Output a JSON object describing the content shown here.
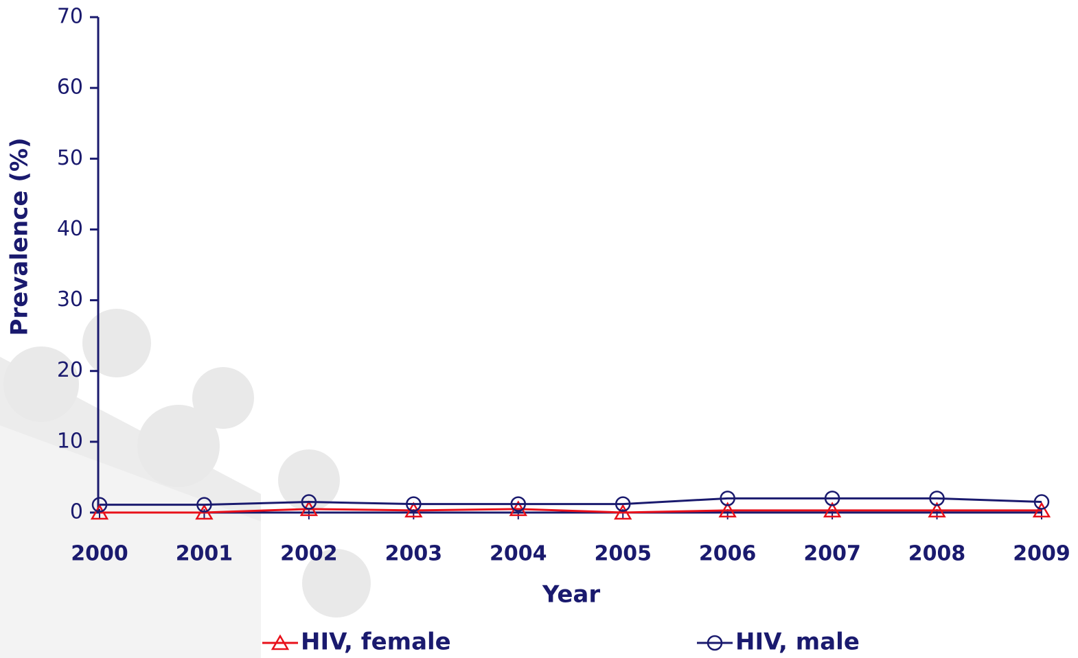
{
  "chart_data": {
    "type": "line",
    "x_label": "Year",
    "y_label": "Prevalence (%)",
    "categories": [
      "2000",
      "2001",
      "2002",
      "2003",
      "2004",
      "2005",
      "2006",
      "2007",
      "2008",
      "2009"
    ],
    "series": [
      {
        "name": "HIV, female",
        "color": "#e8101a",
        "marker": "triangle",
        "values": [
          0,
          0,
          0.5,
          0.3,
          0.5,
          0,
          0.3,
          0.3,
          0.3,
          0.3
        ]
      },
      {
        "name": "HIV, male",
        "color": "#1a1a6e",
        "marker": "circle",
        "values": [
          1.1,
          1.1,
          1.5,
          1.2,
          1.2,
          1.2,
          2.0,
          2.0,
          2.0,
          1.5
        ]
      }
    ],
    "ylim": [
      0,
      70
    ],
    "yticks": [
      0,
      10,
      20,
      30,
      40,
      50,
      60,
      70
    ],
    "grid": false,
    "legend": "bottom"
  }
}
